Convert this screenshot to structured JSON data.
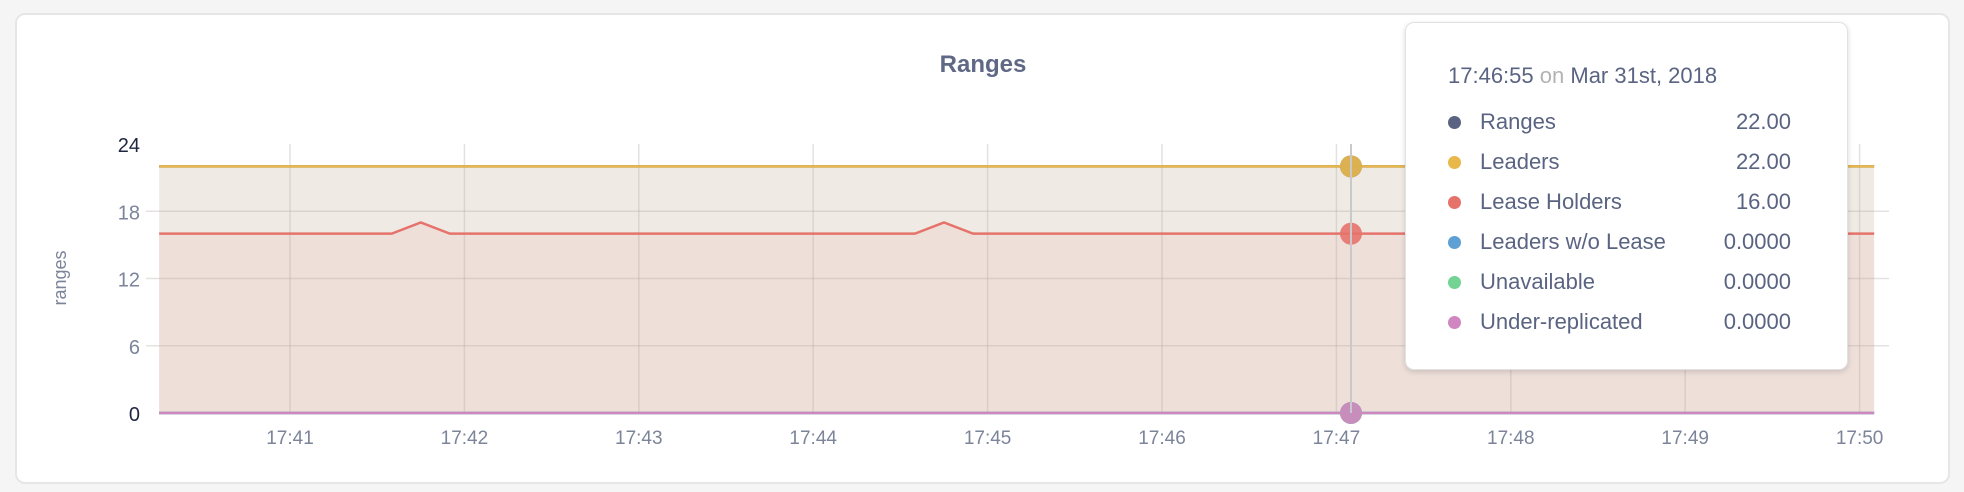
{
  "chart_data": {
    "type": "area",
    "title": "Ranges",
    "ylabel": "ranges",
    "xlabel": "",
    "ylim": [
      0,
      24
    ],
    "y_ticks": [
      "0",
      "6",
      "12",
      "18",
      "24"
    ],
    "x_ticks": [
      "17:41",
      "17:42",
      "17:43",
      "17:44",
      "17:45",
      "17:46",
      "17:47",
      "17:48",
      "17:49",
      "17:50"
    ],
    "xlim": [
      "17:40:15",
      "17:50:05"
    ],
    "grid": true,
    "series": [
      {
        "name": "Ranges",
        "color": "#5a6482",
        "points": [
          [
            "17:40:15",
            22
          ],
          [
            "17:50:05",
            22
          ]
        ]
      },
      {
        "name": "Leaders",
        "color": "#e8b84a",
        "fill": "#efebe4",
        "points": [
          [
            "17:40:15",
            22
          ],
          [
            "17:50:05",
            22
          ]
        ]
      },
      {
        "name": "Lease Holders",
        "color": "#e5736b",
        "fill": "#eedfd9",
        "points": [
          [
            "17:40:15",
            16
          ],
          [
            "17:41:35",
            16
          ],
          [
            "17:41:45",
            17
          ],
          [
            "17:41:55",
            16
          ],
          [
            "17:44:35",
            16
          ],
          [
            "17:44:45",
            17
          ],
          [
            "17:44:55",
            16
          ],
          [
            "17:50:05",
            16
          ]
        ]
      },
      {
        "name": "Leaders w/o Lease",
        "color": "#5e9fd4",
        "points": [
          [
            "17:40:15",
            0
          ],
          [
            "17:50:05",
            0
          ]
        ]
      },
      {
        "name": "Unavailable",
        "color": "#72d392",
        "points": [
          [
            "17:40:15",
            0
          ],
          [
            "17:50:05",
            0
          ]
        ]
      },
      {
        "name": "Under-replicated",
        "color": "#d086c0",
        "points": [
          [
            "17:40:15",
            0
          ],
          [
            "17:50:05",
            0
          ]
        ]
      }
    ]
  },
  "tooltip": {
    "time": "17:46:55",
    "on": "on",
    "date": "Mar 31st, 2018",
    "rows": [
      {
        "label": "Ranges",
        "value": "22.00",
        "color": "#5a6482"
      },
      {
        "label": "Leaders",
        "value": "22.00",
        "color": "#e8b84a"
      },
      {
        "label": "Lease Holders",
        "value": "16.00",
        "color": "#e5736b"
      },
      {
        "label": "Leaders w/o Lease",
        "value": "0.0000",
        "color": "#5e9fd4"
      },
      {
        "label": "Unavailable",
        "value": "0.0000",
        "color": "#72d392"
      },
      {
        "label": "Under-replicated",
        "value": "0.0000",
        "color": "#d086c0"
      }
    ]
  }
}
